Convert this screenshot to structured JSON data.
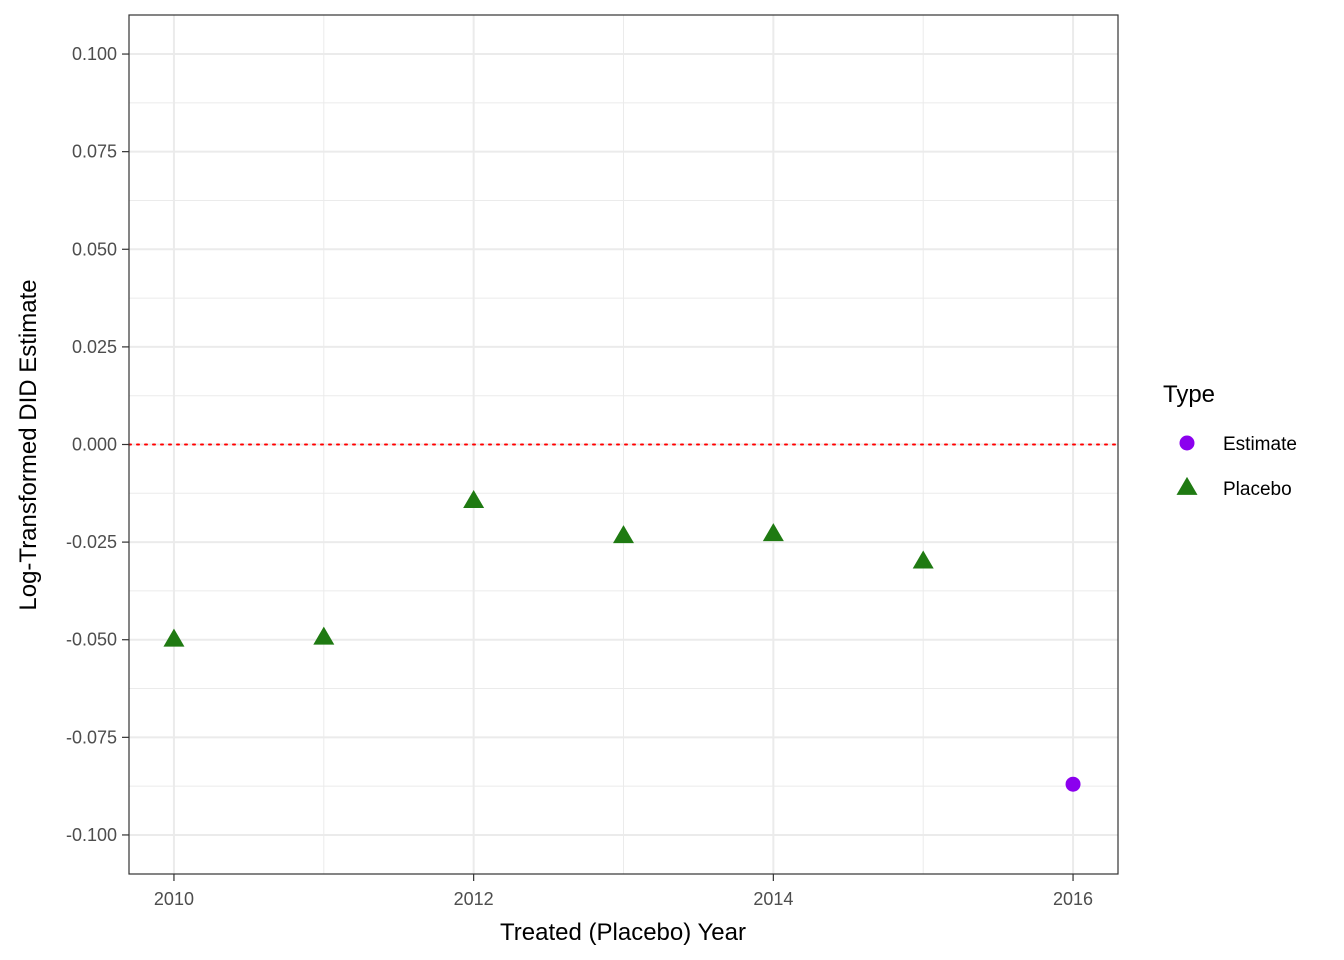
{
  "chart_data": {
    "type": "scatter",
    "xlabel": "Treated (Placebo) Year",
    "ylabel": "Log-Transformed DID Estimate",
    "xlim": [
      2009.7,
      2016.3
    ],
    "ylim": [
      -0.11,
      0.11
    ],
    "x_ticks": [
      2010,
      2012,
      2014,
      2016
    ],
    "x_tick_labels": [
      "2010",
      "2012",
      "2014",
      "2016"
    ],
    "y_ticks": [
      -0.1,
      -0.075,
      -0.05,
      -0.025,
      0,
      0.025,
      0.05,
      0.075,
      0.1
    ],
    "y_tick_labels": [
      "-0.100",
      "-0.075",
      "-0.050",
      "-0.025",
      "0.000",
      "0.025",
      "0.050",
      "0.075",
      "0.100"
    ],
    "grid": true,
    "reference_line": {
      "y": 0,
      "color": "#ff0000",
      "style": "dotted"
    },
    "legend": {
      "title": "Type",
      "position": "right",
      "entries": [
        {
          "label": "Estimate",
          "shape": "circle",
          "color": "#8b00ee"
        },
        {
          "label": "Placebo",
          "shape": "triangle",
          "color": "#1f7a12"
        }
      ]
    },
    "series": [
      {
        "name": "Estimate",
        "shape": "circle",
        "color": "#8b00ee",
        "points": [
          {
            "x": 2016,
            "y": -0.087
          }
        ]
      },
      {
        "name": "Placebo",
        "shape": "triangle",
        "color": "#1f7a12",
        "points": [
          {
            "x": 2010,
            "y": -0.05
          },
          {
            "x": 2011,
            "y": -0.0495
          },
          {
            "x": 2012,
            "y": -0.0145
          },
          {
            "x": 2013,
            "y": -0.0235
          },
          {
            "x": 2014,
            "y": -0.023
          },
          {
            "x": 2015,
            "y": -0.03
          }
        ]
      }
    ]
  }
}
